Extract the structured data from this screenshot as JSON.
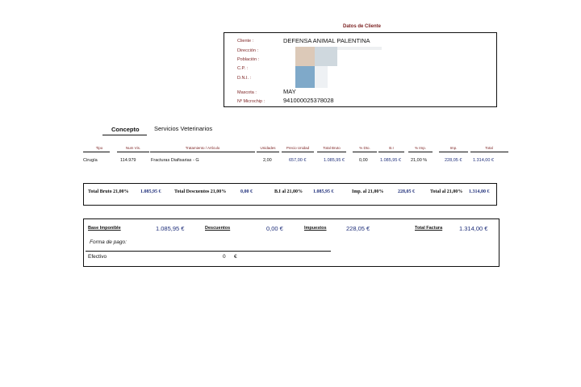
{
  "client": {
    "heading": "Datos de Cliente",
    "labels": {
      "cliente": "Cliente :",
      "direccion": "Dirección :",
      "poblacion": "Población :",
      "cp": "C.P. :",
      "dni": "D.N.I. :",
      "mascota": "Mascota :",
      "microchip": "Nº Microchip :"
    },
    "values": {
      "cliente": "DEFENSA ANIMAL PALENTINA",
      "mascota": "MAY",
      "microchip": "941000025378028"
    }
  },
  "tabs": {
    "concepto": "Concepto",
    "servicios": "Servicios Veterinarios"
  },
  "table": {
    "headers": [
      "Tipo",
      "Num Vis.",
      "Tratamiento / Artículo",
      "Unidades",
      "Precio Unidad",
      "Total Bruto",
      "% Dto.",
      "B.I",
      "% Imp.",
      "Imp.",
      "Total"
    ],
    "row": {
      "tipo": "Cirugía",
      "num": "114.979",
      "tratamiento": "Fracturas Diafisarias - G",
      "unidades": "2,00",
      "precio": "657,00 €",
      "bruto": "1.085,95 €",
      "dto": "0,00",
      "bi": "1.085,95 €",
      "pimp": "21,00 %",
      "imp": "228,05 €",
      "total": "1.314,00 €"
    }
  },
  "totals": {
    "bruto_label": "Total Bruto 21,00%",
    "bruto_value": "1.085,95 €",
    "descuentos_label": "Total Descuentos 21,00%",
    "descuentos_value": "0,00 €",
    "bi_label": "B.I al 21,00%",
    "bi_value": "1.085,95 €",
    "imp_label": "Imp. al 21,00%",
    "imp_value": "228,05 €",
    "total_label": "Total al 21,00%",
    "total_value": "1.314,00 €"
  },
  "summary": {
    "base_label": "Base Imponible",
    "base_value": "1.085,95 €",
    "descuentos_label": "Descuentos",
    "descuentos_value": "0,00 €",
    "impuestos_label": "Impuestos",
    "impuestos_value": "228,05 €",
    "total_label": "Total Factura",
    "total_value": "1.314,00 €",
    "payment_label": "Forma de pago:",
    "payment_method": "Efectivo",
    "payment_amount": "0",
    "payment_currency": "€"
  }
}
